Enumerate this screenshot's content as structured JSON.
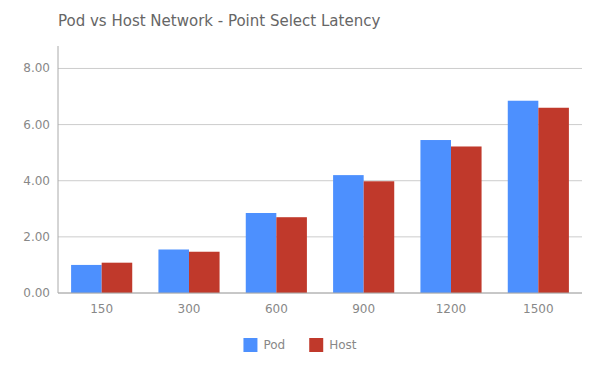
{
  "chart_data": {
    "type": "bar",
    "title": "Pod vs Host Network - Point Select Latency",
    "categories": [
      150,
      300,
      600,
      900,
      1200,
      1500
    ],
    "series": [
      {
        "name": "Pod",
        "color": "#4d90fe",
        "values": [
          1.0,
          1.55,
          2.85,
          4.2,
          5.45,
          6.85
        ]
      },
      {
        "name": "Host",
        "color": "#c0392b",
        "values": [
          1.08,
          1.47,
          2.7,
          3.98,
          5.22,
          6.6
        ]
      }
    ],
    "ylim": [
      0,
      8.8
    ],
    "yticks": [
      {
        "value": 0.0,
        "label": "0.00"
      },
      {
        "value": 2.0,
        "label": "2.00"
      },
      {
        "value": 4.0,
        "label": "4.00"
      },
      {
        "value": 6.0,
        "label": "6.00"
      },
      {
        "value": 8.0,
        "label": "8.00"
      }
    ],
    "grid": true,
    "legend": "bottom"
  }
}
